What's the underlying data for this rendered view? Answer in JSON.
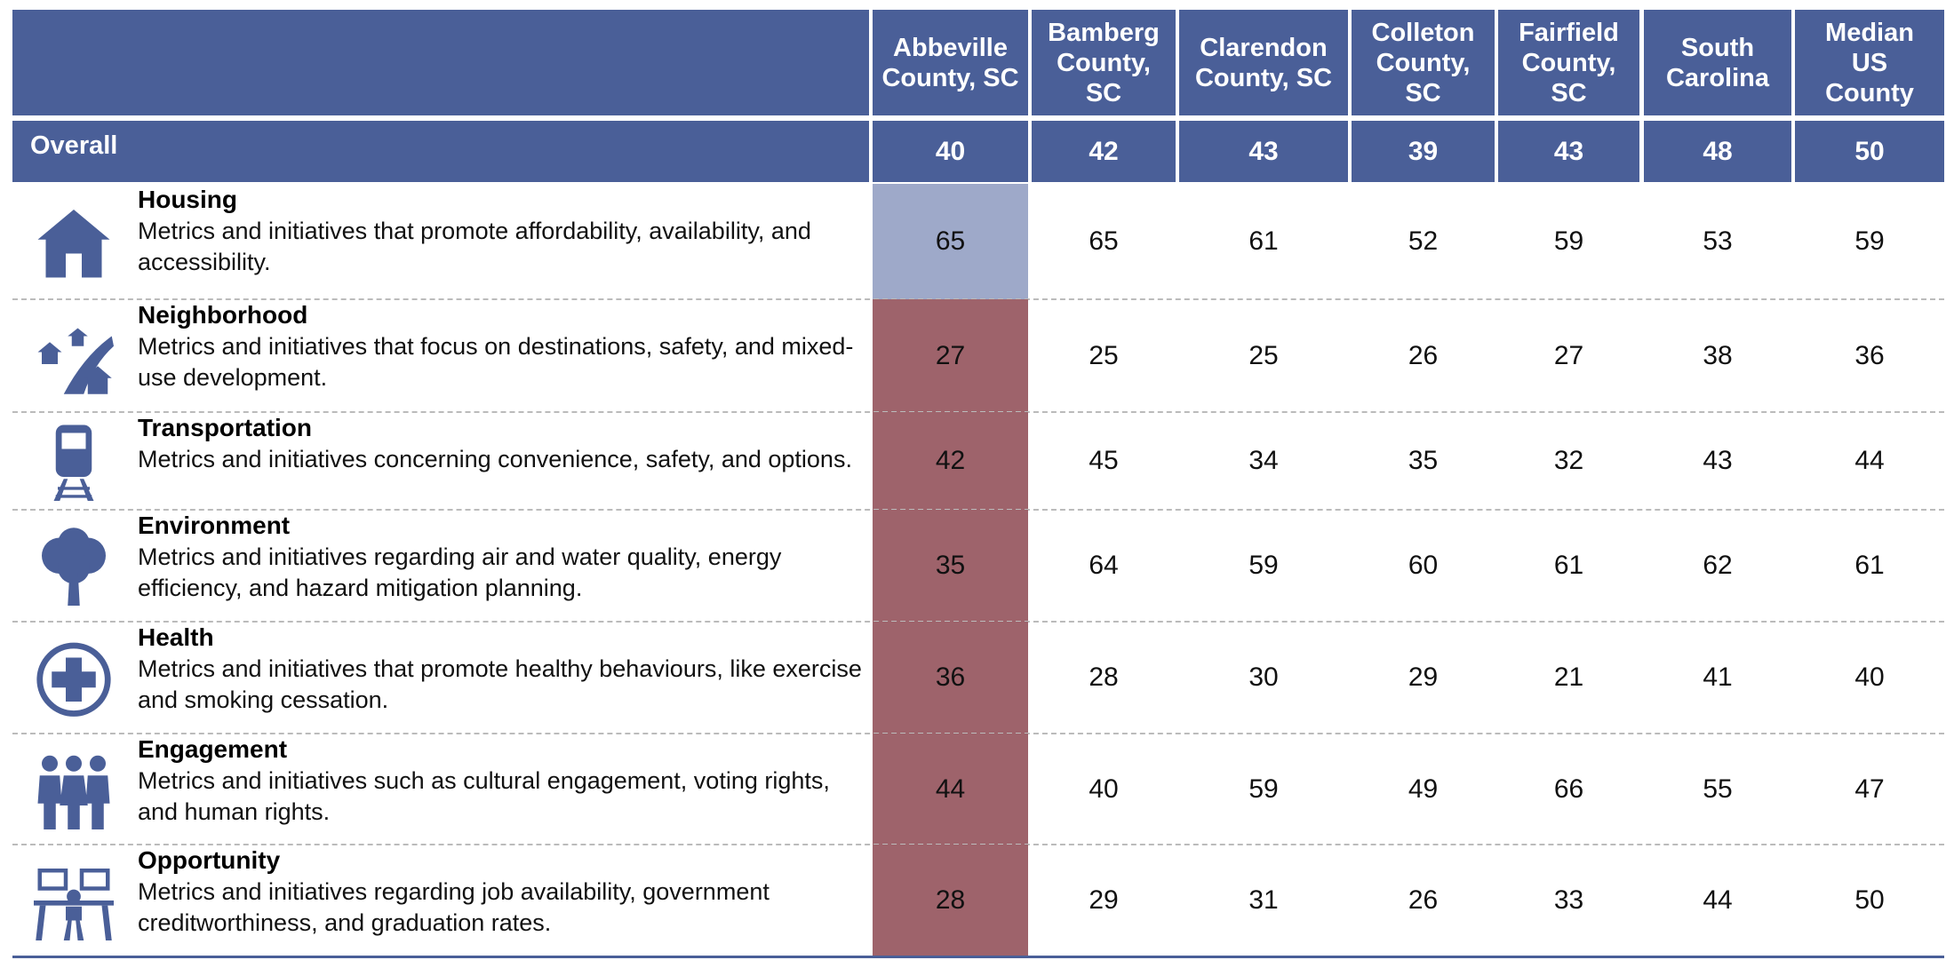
{
  "table": {
    "overall_label": "Overall",
    "header_color": "#4a5f98",
    "columns": [
      "Abbeville County, SC",
      "Bamberg County, SC",
      "Clarendon County, SC",
      "Colleton County, SC",
      "Fairfield County, SC",
      "South Carolina",
      "Median US County"
    ],
    "overall": [
      40,
      42,
      43,
      39,
      43,
      48,
      50
    ],
    "rows": [
      {
        "name": "Housing",
        "description": "Metrics and initiatives that promote affordability, availability, and accessibility.",
        "values": [
          65,
          65,
          61,
          52,
          59,
          53,
          59
        ],
        "highlight_color": "#9ea9c9"
      },
      {
        "name": "Neighborhood",
        "description": "Metrics and initiatives that focus on destinations, safety, and mixed-use development.",
        "values": [
          27,
          25,
          25,
          26,
          27,
          38,
          36
        ],
        "highlight_color": "#9e636b"
      },
      {
        "name": "Transportation",
        "description": "Metrics and initiatives concerning convenience, safety, and options.",
        "values": [
          42,
          45,
          34,
          35,
          32,
          43,
          44
        ],
        "highlight_color": "#9e636b"
      },
      {
        "name": "Environment",
        "description": "Metrics and initiatives regarding air and water quality, energy efficiency, and hazard mitigation planning.",
        "values": [
          35,
          64,
          59,
          60,
          61,
          62,
          61
        ],
        "highlight_color": "#9e636b"
      },
      {
        "name": "Health",
        "description": "Metrics and initiatives that promote healthy behaviours, like exercise and smoking cessation.",
        "values": [
          36,
          28,
          30,
          29,
          21,
          41,
          40
        ],
        "highlight_color": "#9e636b"
      },
      {
        "name": "Engagement",
        "description": "Metrics and initiatives such as cultural engagement, voting rights, and human rights.",
        "values": [
          44,
          40,
          59,
          49,
          66,
          55,
          47
        ],
        "highlight_color": "#9e636b"
      },
      {
        "name": "Opportunity",
        "description": "Metrics and initiatives regarding job availability, government creditworthiness, and graduation rates.",
        "values": [
          28,
          29,
          31,
          26,
          33,
          44,
          50
        ],
        "highlight_color": "#9e636b"
      }
    ]
  }
}
